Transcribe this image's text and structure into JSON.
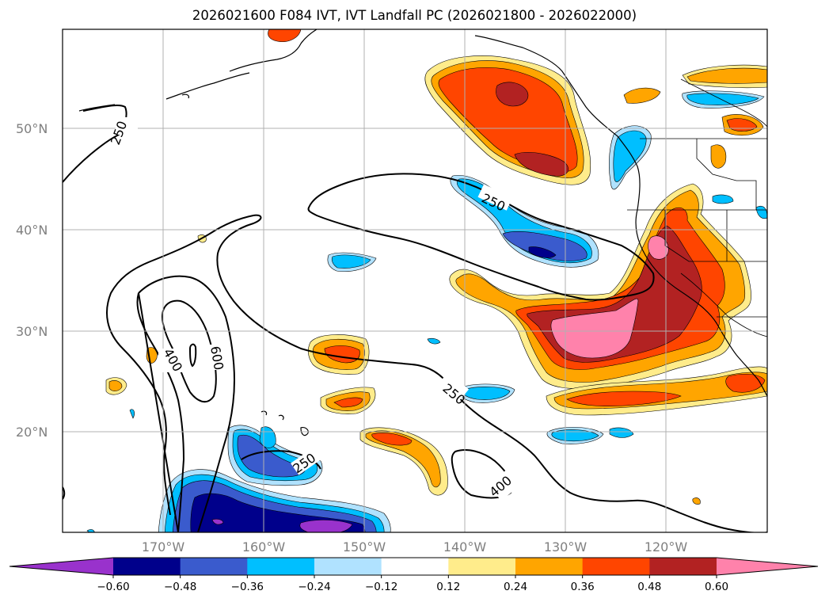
{
  "title": "2026021600 F084 IVT, IVT Landfall PC (2026021800 - 2026022000)",
  "lat_labels": [
    "50°N",
    "40°N",
    "30°N",
    "20°N"
  ],
  "lon_labels": [
    "170°W",
    "160°W",
    "150°W",
    "140°W",
    "130°W",
    "120°W"
  ],
  "contour_levels": [
    "250",
    "400",
    "600"
  ],
  "colorbar": {
    "ticks": [
      "−0.60",
      "−0.48",
      "−0.36",
      "−0.24",
      "−0.12",
      "0.12",
      "0.24",
      "0.36",
      "0.48",
      "0.60"
    ],
    "colors": [
      "#9932cc",
      "#00008b",
      "#3a5bcd",
      "#00bfff",
      "#b0e2ff",
      "#ffffff",
      "#ffec8b",
      "#ffa500",
      "#ff4500",
      "#b22222",
      "#ff82ab",
      "#ff82ab"
    ]
  },
  "chart_data": {
    "type": "map",
    "title": "2026021600 F084 IVT, IVT Landfall PC (2026021800 - 2026022000)",
    "lat_range": [
      10,
      60
    ],
    "lon_range": [
      -180,
      -110
    ],
    "grid": true,
    "contour_levels": [
      250,
      400,
      600
    ],
    "colorbar_levels": [
      -0.6,
      -0.48,
      -0.36,
      -0.24,
      -0.12,
      0.12,
      0.24,
      0.36,
      0.48,
      0.6
    ]
  }
}
